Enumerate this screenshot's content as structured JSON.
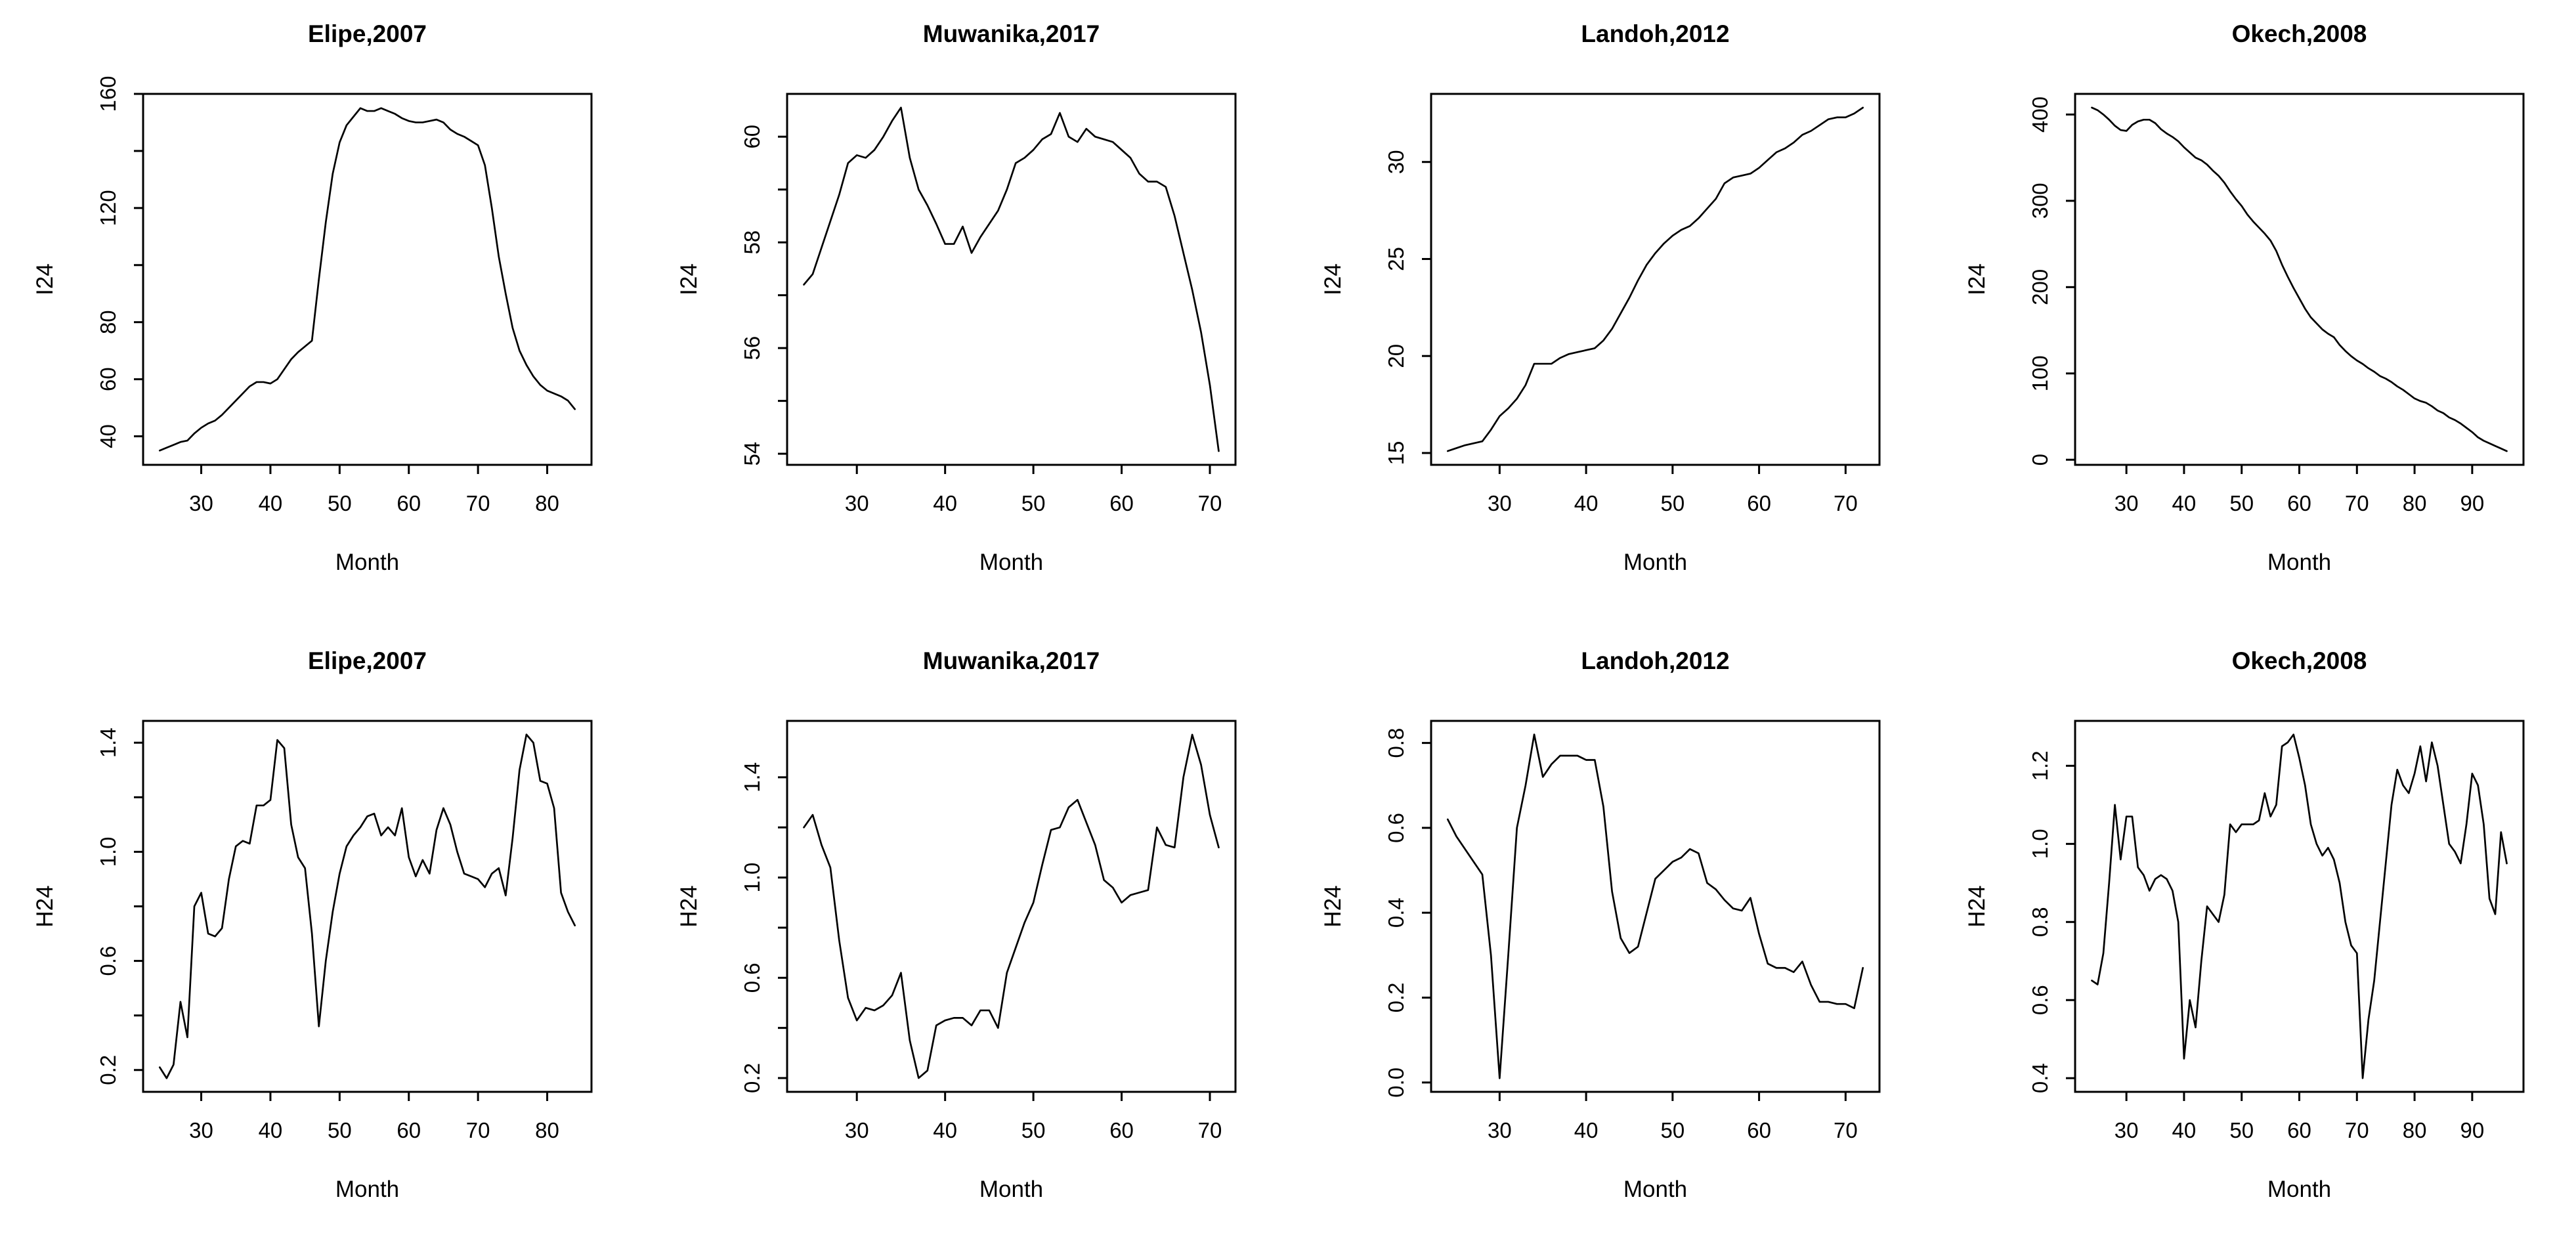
{
  "figure": {
    "background_color": "#ffffff",
    "line_color": "#000000",
    "rows": 2,
    "cols": 4
  },
  "chart_data": [
    {
      "type": "line",
      "title": "Elipe,2007",
      "xlabel": "Month",
      "ylabel": "I24",
      "xlim": [
        21.6,
        86.4
      ],
      "ylim": [
        30,
        160
      ],
      "xticks": [
        30,
        40,
        50,
        60,
        70,
        80
      ],
      "ytick_values": [
        40,
        60,
        80,
        100,
        120,
        140,
        160
      ],
      "ytick_labels": [
        "40",
        "60",
        "80",
        "",
        "120",
        "",
        "160"
      ],
      "legend": "none",
      "grid": false,
      "x": [
        24,
        25,
        26,
        27,
        28,
        29,
        30,
        31,
        32,
        33,
        34,
        35,
        36,
        37,
        38,
        39,
        40,
        41,
        42,
        43,
        44,
        45,
        46,
        47,
        48,
        49,
        50,
        51,
        52,
        53,
        54,
        55,
        56,
        57,
        58,
        59,
        60,
        61,
        62,
        63,
        64,
        65,
        66,
        67,
        68,
        69,
        70,
        71,
        72,
        73,
        74,
        75,
        76,
        77,
        78,
        79,
        80,
        81,
        82,
        83,
        84
      ],
      "y": [
        35,
        36,
        37,
        38,
        38.5,
        41,
        43,
        44.5,
        45.5,
        47.5,
        50,
        52.5,
        55,
        57.5,
        59,
        59,
        58.5,
        60,
        63.5,
        67,
        69.5,
        71.5,
        73.5,
        95,
        115,
        132,
        143,
        149,
        152,
        155,
        154,
        154,
        155,
        154,
        153,
        151.5,
        150.5,
        150,
        150,
        150.5,
        151,
        150,
        147.5,
        146,
        145,
        143.5,
        142,
        135,
        120,
        103,
        90,
        78,
        70,
        65,
        61,
        58,
        56,
        55,
        54,
        52.5,
        49.5
      ]
    },
    {
      "type": "line",
      "title": "Muwanika,2017",
      "xlabel": "Month",
      "ylabel": "I24",
      "xlim": [
        22.1,
        72.9
      ],
      "ylim": [
        53.79,
        60.81
      ],
      "xticks": [
        30,
        40,
        50,
        60,
        70
      ],
      "ytick_values": [
        54,
        55,
        56,
        57,
        58,
        59,
        60
      ],
      "ytick_labels": [
        "54",
        "",
        "56",
        "",
        "58",
        "",
        "60"
      ],
      "legend": "none",
      "grid": false,
      "x": [
        24,
        25,
        26,
        27,
        28,
        29,
        30,
        31,
        32,
        33,
        34,
        35,
        36,
        37,
        38,
        39,
        40,
        41,
        42,
        43,
        44,
        45,
        46,
        47,
        48,
        49,
        50,
        51,
        52,
        53,
        54,
        55,
        56,
        57,
        58,
        59,
        60,
        61,
        62,
        63,
        64,
        65,
        66,
        67,
        68,
        69,
        70,
        71
      ],
      "y": [
        57.2,
        57.4,
        57.9,
        58.4,
        58.9,
        59.5,
        59.65,
        59.6,
        59.75,
        60.0,
        60.3,
        60.55,
        59.6,
        59.0,
        58.7,
        58.35,
        57.97,
        57.97,
        58.3,
        57.8,
        58.1,
        58.35,
        58.6,
        59.0,
        59.5,
        59.6,
        59.75,
        59.95,
        60.05,
        60.45,
        60.0,
        59.9,
        60.15,
        60.0,
        59.95,
        59.9,
        59.75,
        59.6,
        59.3,
        59.15,
        59.15,
        59.05,
        58.5,
        57.8,
        57.1,
        56.3,
        55.3,
        54.05
      ]
    },
    {
      "type": "line",
      "title": "Landoh,2012",
      "xlabel": "Month",
      "ylabel": "I24",
      "xlim": [
        22.08,
        73.92
      ],
      "ylim": [
        14.39,
        33.51
      ],
      "xticks": [
        30,
        40,
        50,
        60,
        70
      ],
      "ytick_values": [
        15,
        20,
        25,
        30
      ],
      "ytick_labels": [
        "15",
        "20",
        "25",
        "30"
      ],
      "legend": "none",
      "grid": false,
      "x": [
        24,
        25,
        26,
        27,
        28,
        29,
        30,
        31,
        32,
        33,
        34,
        35,
        36,
        37,
        38,
        39,
        40,
        41,
        42,
        43,
        44,
        45,
        46,
        47,
        48,
        49,
        50,
        51,
        52,
        53,
        54,
        55,
        56,
        57,
        58,
        59,
        60,
        61,
        62,
        63,
        64,
        65,
        66,
        67,
        68,
        69,
        70,
        71,
        72
      ],
      "y": [
        15.1,
        15.25,
        15.4,
        15.5,
        15.6,
        16.2,
        16.9,
        17.3,
        17.8,
        18.5,
        19.6,
        19.6,
        19.6,
        19.9,
        20.1,
        20.2,
        20.3,
        20.4,
        20.8,
        21.4,
        22.2,
        23.0,
        23.9,
        24.7,
        25.3,
        25.8,
        26.2,
        26.5,
        26.7,
        27.1,
        27.6,
        28.1,
        28.9,
        29.2,
        29.3,
        29.4,
        29.7,
        30.1,
        30.5,
        30.7,
        31.0,
        31.4,
        31.6,
        31.9,
        32.2,
        32.3,
        32.3,
        32.5,
        32.8
      ]
    },
    {
      "type": "line",
      "title": "Okech,2008",
      "xlabel": "Month",
      "ylabel": "I24",
      "xlim": [
        21.1,
        98.9
      ],
      "ylim": [
        -5.9,
        423.9
      ],
      "xticks": [
        30,
        40,
        50,
        60,
        70,
        80,
        90
      ],
      "ytick_values": [
        0,
        100,
        200,
        300,
        400
      ],
      "ytick_labels": [
        "0",
        "100",
        "200",
        "300",
        "400"
      ],
      "legend": "none",
      "grid": false,
      "x": [
        24,
        25,
        26,
        27,
        28,
        29,
        30,
        31,
        32,
        33,
        34,
        35,
        36,
        37,
        38,
        39,
        40,
        41,
        42,
        43,
        44,
        45,
        46,
        47,
        48,
        49,
        50,
        51,
        52,
        53,
        54,
        55,
        56,
        57,
        58,
        59,
        60,
        61,
        62,
        63,
        64,
        65,
        66,
        67,
        68,
        69,
        70,
        71,
        72,
        73,
        74,
        75,
        76,
        77,
        78,
        79,
        80,
        81,
        82,
        83,
        84,
        85,
        86,
        87,
        88,
        89,
        90,
        91,
        92,
        93,
        94,
        95,
        96
      ],
      "y": [
        408,
        405,
        400,
        394,
        387,
        382,
        381,
        388,
        392,
        394,
        394,
        390,
        383,
        378,
        374,
        369,
        362,
        356,
        350,
        347,
        342,
        335,
        329,
        321,
        311,
        302,
        294,
        284,
        276,
        269,
        262,
        254,
        242,
        226,
        212,
        199,
        187,
        175,
        165,
        158,
        151,
        146,
        142,
        133,
        126,
        120,
        115,
        111,
        106,
        102,
        97,
        94,
        90,
        85,
        81,
        76,
        71,
        68,
        66,
        62,
        57,
        54,
        49,
        46,
        42,
        37,
        32,
        26,
        22,
        19,
        16,
        13,
        10
      ]
    },
    {
      "type": "line",
      "title": "Elipe,2007",
      "xlabel": "Month",
      "ylabel": "H24",
      "xlim": [
        21.6,
        86.4
      ],
      "ylim": [
        0.12,
        1.48
      ],
      "xticks": [
        30,
        40,
        50,
        60,
        70,
        80
      ],
      "ytick_values": [
        0.2,
        0.4,
        0.6,
        0.8,
        1.0,
        1.2,
        1.4
      ],
      "ytick_labels": [
        "0.2",
        "",
        "0.6",
        "",
        "1.0",
        "",
        "1.4"
      ],
      "legend": "none",
      "grid": false,
      "x": [
        24,
        25,
        26,
        27,
        28,
        29,
        30,
        31,
        32,
        33,
        34,
        35,
        36,
        37,
        38,
        39,
        40,
        41,
        42,
        43,
        44,
        45,
        46,
        47,
        48,
        49,
        50,
        51,
        52,
        53,
        54,
        55,
        56,
        57,
        58,
        59,
        60,
        61,
        62,
        63,
        64,
        65,
        66,
        67,
        68,
        69,
        70,
        71,
        72,
        73,
        74,
        75,
        76,
        77,
        78,
        79,
        80,
        81,
        82,
        83,
        84
      ],
      "y": [
        0.21,
        0.17,
        0.22,
        0.45,
        0.32,
        0.8,
        0.85,
        0.7,
        0.69,
        0.72,
        0.9,
        1.02,
        1.04,
        1.03,
        1.17,
        1.17,
        1.19,
        1.41,
        1.38,
        1.1,
        0.98,
        0.94,
        0.7,
        0.36,
        0.6,
        0.78,
        0.92,
        1.02,
        1.06,
        1.09,
        1.13,
        1.14,
        1.06,
        1.09,
        1.06,
        1.16,
        0.98,
        0.91,
        0.97,
        0.92,
        1.08,
        1.16,
        1.1,
        1.0,
        0.92,
        0.91,
        0.9,
        0.87,
        0.92,
        0.94,
        0.84,
        1.05,
        1.3,
        1.43,
        1.4,
        1.26,
        1.25,
        1.16,
        0.85,
        0.78,
        0.73
      ]
    },
    {
      "type": "line",
      "title": "Muwanika,2017",
      "xlabel": "Month",
      "ylabel": "H24",
      "xlim": [
        22.1,
        72.9
      ],
      "ylim": [
        0.145,
        1.625
      ],
      "xticks": [
        30,
        40,
        50,
        60,
        70
      ],
      "ytick_values": [
        0.2,
        0.4,
        0.6,
        0.8,
        1.0,
        1.2,
        1.4
      ],
      "ytick_labels": [
        "0.2",
        "",
        "0.6",
        "",
        "1.0",
        "",
        "1.4"
      ],
      "legend": "none",
      "grid": false,
      "x": [
        24,
        25,
        26,
        27,
        28,
        29,
        30,
        31,
        32,
        33,
        34,
        35,
        36,
        37,
        38,
        39,
        40,
        41,
        42,
        43,
        44,
        45,
        46,
        47,
        48,
        49,
        50,
        51,
        52,
        53,
        54,
        55,
        56,
        57,
        58,
        59,
        60,
        61,
        62,
        63,
        64,
        65,
        66,
        67,
        68,
        69,
        70,
        71
      ],
      "y": [
        1.2,
        1.25,
        1.13,
        1.04,
        0.75,
        0.52,
        0.43,
        0.48,
        0.47,
        0.49,
        0.53,
        0.62,
        0.35,
        0.2,
        0.23,
        0.41,
        0.43,
        0.44,
        0.44,
        0.41,
        0.47,
        0.47,
        0.4,
        0.62,
        0.72,
        0.82,
        0.9,
        1.05,
        1.19,
        1.2,
        1.28,
        1.31,
        1.22,
        1.13,
        0.99,
        0.96,
        0.9,
        0.93,
        0.94,
        0.95,
        1.2,
        1.13,
        1.12,
        1.4,
        1.57,
        1.45,
        1.25,
        1.12
      ]
    },
    {
      "type": "line",
      "title": "Landoh,2012",
      "xlabel": "Month",
      "ylabel": "H24",
      "xlim": [
        22.08,
        73.92
      ],
      "ylim": [
        -0.022,
        0.852
      ],
      "xticks": [
        30,
        40,
        50,
        60,
        70
      ],
      "ytick_values": [
        0.0,
        0.2,
        0.4,
        0.6,
        0.8
      ],
      "ytick_labels": [
        "0.0",
        "0.2",
        "0.4",
        "0.6",
        "0.8"
      ],
      "legend": "none",
      "grid": false,
      "x": [
        24,
        25,
        26,
        27,
        28,
        29,
        30,
        31,
        32,
        33,
        34,
        35,
        36,
        37,
        38,
        39,
        40,
        41,
        42,
        43,
        44,
        45,
        46,
        47,
        48,
        49,
        50,
        51,
        52,
        53,
        54,
        55,
        56,
        57,
        58,
        59,
        60,
        61,
        62,
        63,
        64,
        65,
        66,
        67,
        68,
        69,
        70,
        71,
        72
      ],
      "y": [
        0.62,
        0.58,
        0.55,
        0.52,
        0.49,
        0.3,
        0.01,
        0.3,
        0.6,
        0.7,
        0.82,
        0.72,
        0.75,
        0.77,
        0.77,
        0.77,
        0.76,
        0.76,
        0.65,
        0.45,
        0.34,
        0.305,
        0.32,
        0.4,
        0.48,
        0.5,
        0.52,
        0.53,
        0.55,
        0.54,
        0.47,
        0.455,
        0.43,
        0.41,
        0.405,
        0.435,
        0.35,
        0.28,
        0.27,
        0.27,
        0.26,
        0.285,
        0.23,
        0.19,
        0.19,
        0.185,
        0.185,
        0.175,
        0.27
      ]
    },
    {
      "type": "line",
      "title": "Okech,2008",
      "xlabel": "Month",
      "ylabel": "H24",
      "xlim": [
        21.1,
        98.9
      ],
      "ylim": [
        0.365,
        1.315
      ],
      "xticks": [
        30,
        40,
        50,
        60,
        70,
        80,
        90
      ],
      "ytick_values": [
        0.4,
        0.6,
        0.8,
        1.0,
        1.2
      ],
      "ytick_labels": [
        "0.4",
        "0.6",
        "0.8",
        "1.0",
        "1.2"
      ],
      "legend": "none",
      "grid": false,
      "x": [
        24,
        25,
        26,
        27,
        28,
        29,
        30,
        31,
        32,
        33,
        34,
        35,
        36,
        37,
        38,
        39,
        40,
        41,
        42,
        43,
        44,
        45,
        46,
        47,
        48,
        49,
        50,
        51,
        52,
        53,
        54,
        55,
        56,
        57,
        58,
        59,
        60,
        61,
        62,
        63,
        64,
        65,
        66,
        67,
        68,
        69,
        70,
        71,
        72,
        73,
        74,
        75,
        76,
        77,
        78,
        79,
        80,
        81,
        82,
        83,
        84,
        85,
        86,
        87,
        88,
        89,
        90,
        91,
        92,
        93,
        94,
        95,
        96
      ],
      "y": [
        0.65,
        0.64,
        0.72,
        0.9,
        1.1,
        0.96,
        1.07,
        1.07,
        0.94,
        0.92,
        0.88,
        0.91,
        0.92,
        0.91,
        0.88,
        0.8,
        0.45,
        0.6,
        0.53,
        0.7,
        0.84,
        0.82,
        0.8,
        0.87,
        1.05,
        1.03,
        1.05,
        1.05,
        1.05,
        1.06,
        1.13,
        1.07,
        1.1,
        1.25,
        1.26,
        1.28,
        1.22,
        1.15,
        1.05,
        1.0,
        0.97,
        0.99,
        0.96,
        0.9,
        0.8,
        0.74,
        0.72,
        0.4,
        0.55,
        0.65,
        0.8,
        0.95,
        1.1,
        1.19,
        1.15,
        1.13,
        1.18,
        1.25,
        1.16,
        1.26,
        1.2,
        1.1,
        1.0,
        0.98,
        0.95,
        1.05,
        1.18,
        1.15,
        1.05,
        0.86,
        0.82,
        1.03,
        0.95
      ]
    }
  ]
}
